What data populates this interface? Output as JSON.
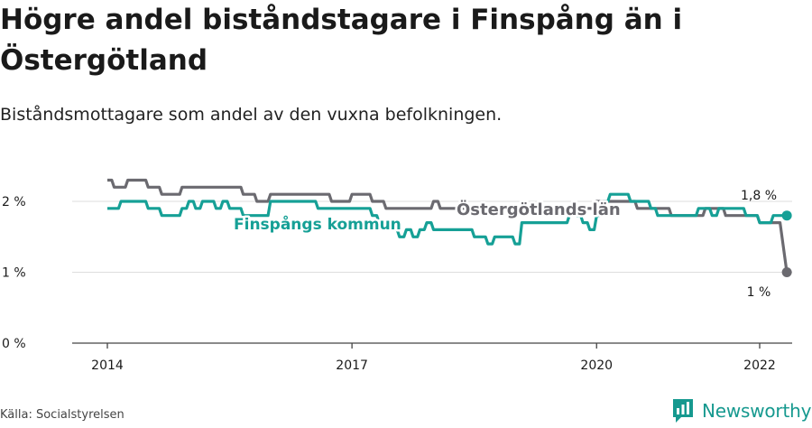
{
  "header": {
    "title": "Högre andel biståndstagare i Finspång än i Östergötland",
    "subtitle": "Biståndsmottagare som andel av den vuxna befolkningen."
  },
  "footer": {
    "source": "Källa: Socialstyrelsen",
    "brand": "Newsworthy"
  },
  "colors": {
    "finspang": "#16a096",
    "ostergotland": "#6b6a70",
    "grid": "#dddddd",
    "axis": "#444444"
  },
  "chart_data": {
    "type": "line",
    "x_start": "2014-01",
    "x_step": "month",
    "xlim": [
      "2014-01",
      "2022-12"
    ],
    "ylim": [
      0,
      2.4
    ],
    "y_ticks": [
      0,
      1,
      2
    ],
    "y_tick_labels": [
      "0 %",
      "1 %",
      "2 %"
    ],
    "x_ticks": [
      "2014-01",
      "2017-01",
      "2020-01",
      "2022-01"
    ],
    "x_tick_labels": [
      "2014",
      "2017",
      "2020",
      "2022"
    ],
    "grid": true,
    "series": [
      {
        "name": "Östergötlands län",
        "label": "Östergötlands län",
        "color": "#6b6a70",
        "end_label": "1 %",
        "values": [
          2.3,
          2.2,
          2.2,
          2.3,
          2.3,
          2.3,
          2.2,
          2.2,
          2.1,
          2.1,
          2.1,
          2.2,
          2.2,
          2.2,
          2.2,
          2.2,
          2.2,
          2.2,
          2.2,
          2.2,
          2.1,
          2.1,
          2.0,
          2.0,
          2.1,
          2.1,
          2.1,
          2.1,
          2.1,
          2.1,
          2.1,
          2.1,
          2.1,
          2.0,
          2.0,
          2.0,
          2.1,
          2.1,
          2.1,
          2.0,
          2.0,
          1.9,
          1.9,
          1.9,
          1.9,
          1.9,
          1.9,
          1.9,
          2.0,
          1.9,
          1.9,
          1.9,
          1.9,
          1.9,
          1.9,
          1.9,
          1.9,
          1.9,
          1.9,
          1.9,
          1.9,
          1.9,
          1.9,
          1.9,
          1.9,
          1.9,
          1.9,
          1.9,
          1.9,
          1.9,
          1.9,
          1.9,
          2.0,
          2.0,
          2.0,
          2.0,
          2.0,
          2.0,
          1.9,
          1.9,
          1.9,
          1.9,
          1.9,
          1.8,
          1.8,
          1.8,
          1.8,
          1.8,
          1.9,
          1.9,
          1.9,
          1.8,
          1.8,
          1.8,
          1.8,
          1.8,
          1.7,
          1.7,
          1.7,
          1.7,
          1.0
        ]
      },
      {
        "name": "Finspångs kommun",
        "label": "Finspångs kommun",
        "color": "#16a096",
        "end_label": "1,8 %",
        "values": [
          1.9,
          1.9,
          2.0,
          2.0,
          2.0,
          2.0,
          1.9,
          1.9,
          1.8,
          1.8,
          1.8,
          1.9,
          2.0,
          1.9,
          2.0,
          2.0,
          1.9,
          2.0,
          1.9,
          1.9,
          1.8,
          1.8,
          1.8,
          1.8,
          2.0,
          2.0,
          2.0,
          2.0,
          2.0,
          2.0,
          2.0,
          1.9,
          1.9,
          1.9,
          1.9,
          1.9,
          1.9,
          1.9,
          1.9,
          1.8,
          1.7,
          1.7,
          1.6,
          1.5,
          1.6,
          1.5,
          1.6,
          1.7,
          1.6,
          1.6,
          1.6,
          1.6,
          1.6,
          1.6,
          1.5,
          1.5,
          1.4,
          1.5,
          1.5,
          1.5,
          1.4,
          1.7,
          1.7,
          1.7,
          1.7,
          1.7,
          1.7,
          1.7,
          1.8,
          1.8,
          1.7,
          1.6,
          1.8,
          2.0,
          2.1,
          2.1,
          2.1,
          2.0,
          2.0,
          2.0,
          1.9,
          1.8,
          1.8,
          1.8,
          1.8,
          1.8,
          1.8,
          1.9,
          1.9,
          1.8,
          1.9,
          1.9,
          1.9,
          1.9,
          1.8,
          1.8,
          1.7,
          1.7,
          1.8,
          1.8,
          1.8
        ]
      }
    ]
  }
}
